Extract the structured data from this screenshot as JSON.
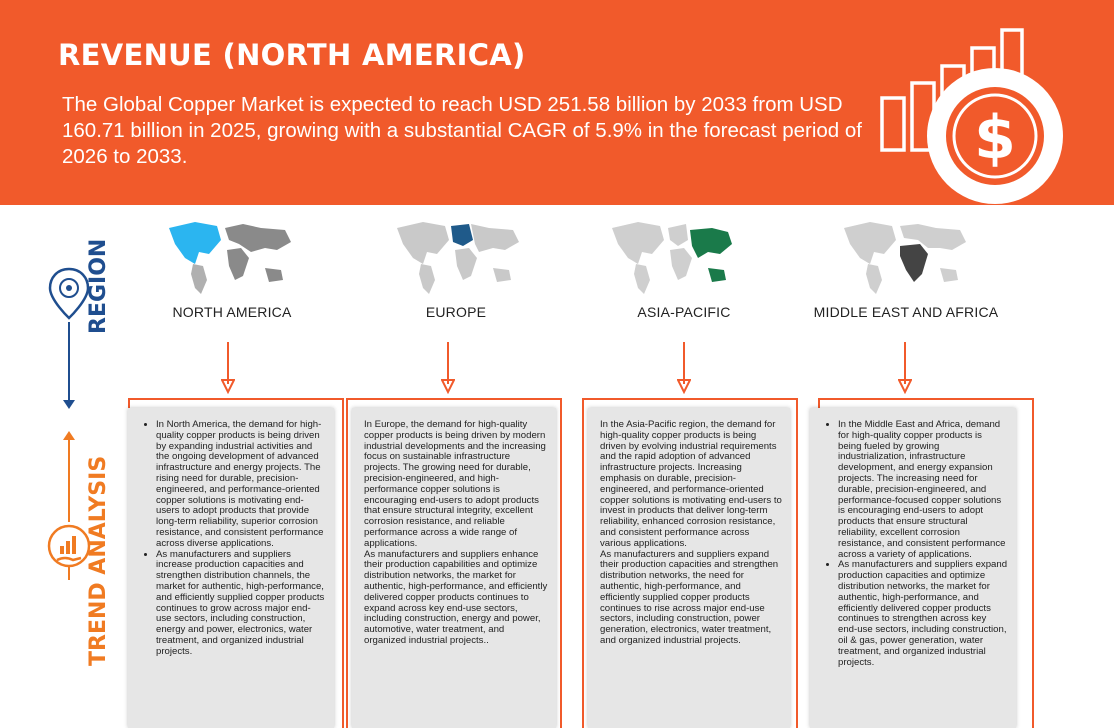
{
  "header": {
    "title": "REVENUE (NORTH AMERICA)",
    "intro": "The Global Copper Market is expected to reach USD 251.58 billion by 2033 from USD 160.71 billion in 2025, growing with a substantial CAGR of  5.9%  in the forecast period of 2026 to 2033."
  },
  "side": {
    "region_label": "REGION",
    "trend_label": "TREND ANALYSIS"
  },
  "colors": {
    "accent_orange": "#f15a2b",
    "navy": "#1f4e8f",
    "trend_orange": "#f07b22",
    "north_america_highlight": "#2bb5f0",
    "europe_highlight": "#1f5a8a",
    "asia_pacific_highlight": "#1a7a4a",
    "mea_highlight": "#444444"
  },
  "icons": [
    "location-pin-icon",
    "trend-analysis-icon",
    "dollar-icon",
    "bar-chart-icon"
  ],
  "regions": [
    {
      "name": "NORTH AMERICA",
      "bullets": [
        "In North America, the demand for high-quality copper products is being driven by expanding industrial activities and the ongoing development of advanced infrastructure and energy projects. The rising need for durable, precision-engineered, and performance-oriented copper solutions is motivating end-users to adopt products that provide long-term reliability, superior corrosion resistance, and consistent performance across diverse applications.",
        "As manufacturers and suppliers increase production capacities and strengthen distribution channels, the market for authentic, high-performance, and efficiently supplied copper products continues to grow across major end-use sectors, including construction, energy and power, electronics, water treatment, and organized industrial projects."
      ]
    },
    {
      "name": "EUROPE",
      "paragraphs": [
        "In Europe, the demand for high-quality copper products is being driven by modern industrial developments and the increasing focus on sustainable infrastructure projects. The growing need for durable, precision-engineered, and high-performance copper solutions is encouraging end-users to adopt products that ensure structural integrity, excellent corrosion resistance, and reliable performance across a wide range of applications.",
        "As manufacturers and suppliers enhance their production capabilities and optimize distribution networks, the market for authentic, high-performance, and efficiently delivered copper products continues to expand across key end-use sectors, including construction, energy and power, automotive, water treatment, and organized industrial projects.."
      ]
    },
    {
      "name": "ASIA-PACIFIC",
      "paragraphs": [
        "In the Asia-Pacific region, the demand for high-quality copper products is being driven by evolving industrial requirements and the rapid adoption of advanced infrastructure projects. Increasing emphasis on durable, precision-engineered, and performance-oriented copper solutions is motivating end-users to invest in products that deliver long-term reliability, enhanced corrosion resistance, and consistent performance across various applications.",
        "As manufacturers and suppliers expand their production capacities and strengthen distribution networks, the need for authentic, high-performance, and efficiently supplied copper products continues to rise across major end-use sectors, including construction, power generation, electronics, water treatment, and organized industrial projects."
      ]
    },
    {
      "name": "MIDDLE EAST AND AFRICA",
      "bullets": [
        "In the Middle East and Africa, demand for high-quality copper products is being fueled by growing industrialization, infrastructure development, and energy expansion projects. The increasing need for durable, precision-engineered, and performance-focused copper solutions is encouraging end-users to adopt products that ensure structural reliability, excellent corrosion resistance, and consistent performance across a variety of applications.",
        "As manufacturers and suppliers expand production capacities and optimize distribution networks, the market for authentic, high-performance, and efficiently delivered copper products continues to strengthen across key end-use sectors, including construction, oil & gas, power generation, water treatment, and organized industrial projects."
      ]
    }
  ]
}
